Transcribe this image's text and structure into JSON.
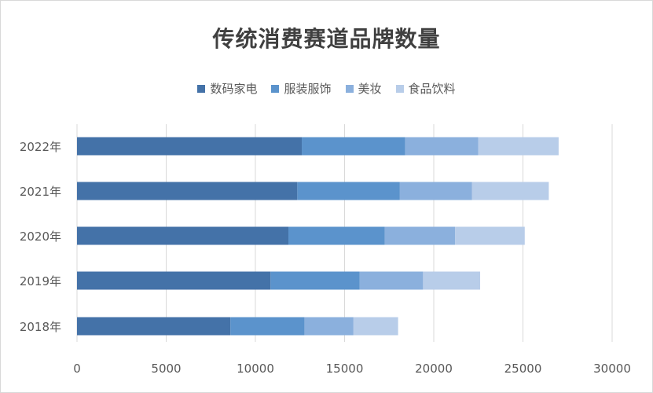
{
  "chart_data": {
    "type": "bar",
    "orientation": "horizontal",
    "stacked": true,
    "title": "传统消费赛道品牌数量",
    "categories": [
      "2018年",
      "2019年",
      "2020年",
      "2021年",
      "2022年"
    ],
    "series": [
      {
        "name": "数码家电",
        "color": "#4472a8",
        "values": [
          8600,
          10850,
          11850,
          12350,
          12600
        ]
      },
      {
        "name": "服装服饰",
        "color": "#5b93cc",
        "values": [
          4150,
          5000,
          5400,
          5750,
          5800
        ]
      },
      {
        "name": "美妆",
        "color": "#8bb0dd",
        "values": [
          2750,
          3550,
          3950,
          4050,
          4100
        ]
      },
      {
        "name": "食品饮料",
        "color": "#b8cde9",
        "values": [
          2500,
          3200,
          3900,
          4300,
          4500
        ]
      }
    ],
    "xlim": [
      0,
      30000
    ],
    "xticks": [
      "0",
      "5000",
      "10000",
      "15000",
      "20000",
      "25000",
      "30000"
    ],
    "grid": true,
    "legend": "top"
  }
}
